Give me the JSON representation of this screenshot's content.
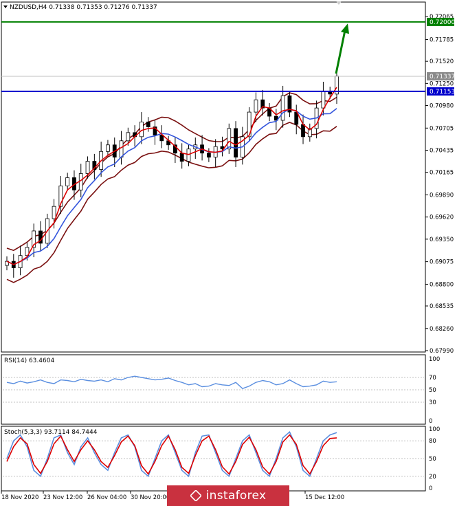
{
  "chart_data": [
    {
      "type": "candlestick",
      "title": "NZDUSD,H4  0.71338 0.71353 0.71276 0.71337",
      "ylim": [
        0.6799,
        0.721
      ],
      "y_ticks": [
        "0.72065",
        "0.71785",
        "0.71520",
        "0.71250",
        "0.70980",
        "0.70705",
        "0.70435",
        "0.70165",
        "0.69890",
        "0.69620",
        "0.69350",
        "0.69075",
        "0.68800",
        "0.68535",
        "0.68260",
        "0.67990"
      ],
      "x_ticks": [
        "18 Nov 2020",
        "23 Nov 12:00",
        "26 Nov 04:00",
        "30 Nov 20:00",
        "15 Dec 12:00"
      ],
      "levels": [
        {
          "name": "resistance",
          "value": "0.72000",
          "color": "#008000"
        },
        {
          "name": "support",
          "value": "0.71153",
          "color": "#0000cc"
        }
      ],
      "current_price": {
        "value": "0.71337",
        "color": "#8a8a8a"
      },
      "arrow": {
        "from": 0.7137,
        "to": 0.7198,
        "color": "#008000"
      },
      "close_path": [
        0.6908,
        0.69,
        0.6915,
        0.6925,
        0.6945,
        0.693,
        0.696,
        0.6975,
        0.7,
        0.701,
        0.6995,
        0.7015,
        0.703,
        0.702,
        0.7042,
        0.705,
        0.7035,
        0.7055,
        0.7065,
        0.706,
        0.7078,
        0.7072,
        0.7062,
        0.7055,
        0.705,
        0.704,
        0.703,
        0.7045,
        0.705,
        0.704,
        0.7035,
        0.7048,
        0.7045,
        0.707,
        0.7035,
        0.706,
        0.709,
        0.7105,
        0.7095,
        0.7085,
        0.708,
        0.711,
        0.709,
        0.7075,
        0.706,
        0.707,
        0.7095,
        0.7115,
        0.7112,
        0.7134
      ]
    },
    {
      "type": "line",
      "title": "RSI(14) 63.4604",
      "ylim": [
        0,
        100
      ],
      "y_ticks": [
        "100",
        "70",
        "50",
        "30",
        "0"
      ],
      "values": [
        62,
        60,
        64,
        61,
        63,
        66,
        62,
        60,
        66,
        65,
        63,
        67,
        65,
        64,
        66,
        63,
        68,
        66,
        70,
        72,
        70,
        68,
        66,
        67,
        69,
        65,
        62,
        58,
        60,
        55,
        56,
        60,
        58,
        57,
        62,
        52,
        56,
        62,
        65,
        63,
        58,
        60,
        66,
        60,
        55,
        56,
        58,
        64,
        62,
        63
      ]
    },
    {
      "type": "line",
      "title": "Stoch(5,3,3) 93.7114 84.7444",
      "ylim": [
        0,
        100
      ],
      "y_ticks": [
        "100",
        "80",
        "50",
        "20",
        "0"
      ],
      "series": [
        {
          "values": [
            50,
            80,
            90,
            70,
            30,
            20,
            50,
            85,
            90,
            60,
            40,
            70,
            85,
            60,
            40,
            30,
            60,
            85,
            90,
            70,
            30,
            20,
            50,
            80,
            90,
            60,
            30,
            20,
            60,
            88,
            90,
            60,
            30,
            20,
            50,
            80,
            90,
            60,
            30,
            20,
            50,
            85,
            95,
            70,
            30,
            20,
            50,
            80,
            90,
            94
          ]
        },
        {
          "values": [
            45,
            70,
            85,
            75,
            40,
            25,
            45,
            75,
            88,
            65,
            45,
            65,
            80,
            65,
            45,
            35,
            55,
            78,
            88,
            72,
            38,
            24,
            45,
            72,
            88,
            65,
            35,
            25,
            55,
            80,
            88,
            65,
            36,
            24,
            45,
            74,
            86,
            65,
            36,
            24,
            45,
            78,
            90,
            74,
            38,
            24,
            45,
            72,
            84,
            85
          ]
        }
      ]
    }
  ],
  "watermark": {
    "text": "instaforex"
  }
}
